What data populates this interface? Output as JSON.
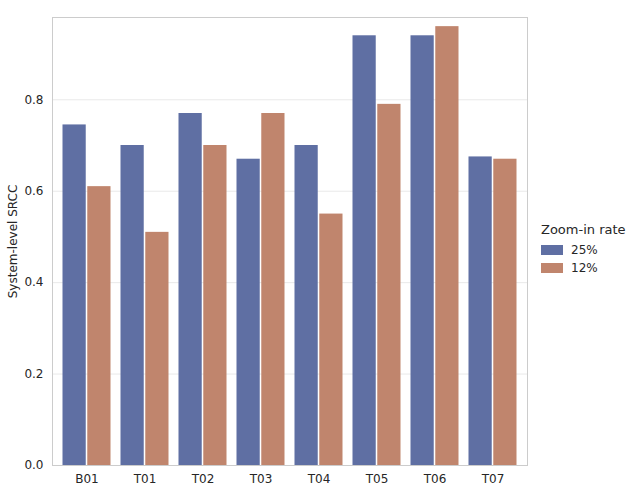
{
  "chart_data": {
    "type": "bar",
    "categories": [
      "B01",
      "T01",
      "T02",
      "T03",
      "T04",
      "T05",
      "T06",
      "T07"
    ],
    "series": [
      {
        "name": "25%",
        "color": "#5f6fa3",
        "values": [
          0.745,
          0.7,
          0.77,
          0.67,
          0.7,
          0.94,
          0.94,
          0.675
        ]
      },
      {
        "name": "12%",
        "color": "#c0856d",
        "values": [
          0.61,
          0.51,
          0.7,
          0.77,
          0.55,
          0.79,
          0.96,
          0.67
        ]
      }
    ],
    "y_label": "System-level SRCC",
    "legend_title": "Zoom-in rate",
    "ylim": [
      0,
      0.98
    ],
    "yticks": [
      {
        "value": 0,
        "label": "0.0"
      },
      {
        "value": 0.2,
        "label": "0.2"
      },
      {
        "value": 0.4,
        "label": "0.4"
      },
      {
        "value": 0.6,
        "label": "0.6"
      },
      {
        "value": 0.8,
        "label": "0.8"
      }
    ],
    "grid": true,
    "legend": "right"
  }
}
